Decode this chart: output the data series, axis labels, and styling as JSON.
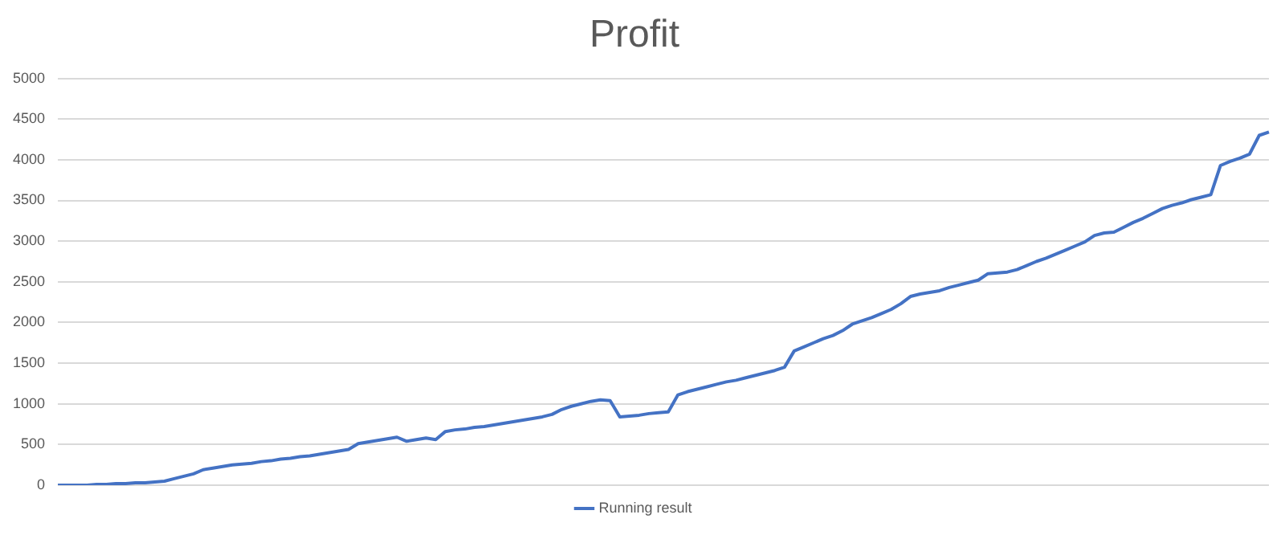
{
  "chart_data": {
    "type": "line",
    "title": "Profit",
    "categories": [
      null,
      null,
      null,
      null,
      null,
      null,
      null,
      null,
      null,
      null,
      null,
      null,
      null,
      null,
      null,
      null,
      null,
      null,
      null,
      null,
      null,
      null,
      null,
      null,
      null,
      null,
      null,
      null,
      null,
      null,
      null,
      null,
      null,
      null,
      null,
      null,
      null,
      null,
      null,
      null,
      null,
      null,
      null,
      null,
      null,
      null,
      null,
      null,
      null,
      null,
      null,
      null,
      null,
      null,
      null,
      null,
      null,
      null,
      null,
      null,
      null,
      null,
      null,
      null,
      null,
      null,
      null,
      null,
      null,
      null,
      null,
      null,
      null,
      null,
      null,
      null,
      null,
      null,
      null,
      null,
      null,
      null,
      null,
      null,
      null,
      null,
      null,
      null,
      null,
      null,
      null,
      null,
      null,
      null,
      null,
      null,
      null,
      null,
      null,
      null,
      null,
      null,
      null,
      null,
      null,
      null,
      null,
      null,
      null,
      null,
      null,
      null,
      null,
      null,
      null,
      null,
      null,
      null,
      null,
      null,
      null,
      null,
      null,
      null,
      null,
      null
    ],
    "series": [
      {
        "name": "Running result",
        "color": "#4472c4",
        "values": [
          0,
          0,
          0,
          0,
          10,
          10,
          20,
          20,
          30,
          30,
          40,
          50,
          80,
          110,
          140,
          190,
          210,
          230,
          250,
          260,
          270,
          290,
          300,
          320,
          330,
          350,
          360,
          380,
          400,
          420,
          440,
          510,
          530,
          550,
          570,
          590,
          540,
          560,
          580,
          560,
          660,
          680,
          690,
          710,
          720,
          740,
          760,
          780,
          800,
          820,
          840,
          870,
          930,
          970,
          1000,
          1030,
          1050,
          1040,
          840,
          850,
          860,
          880,
          890,
          900,
          1110,
          1150,
          1180,
          1210,
          1240,
          1270,
          1290,
          1320,
          1350,
          1380,
          1410,
          1450,
          1650,
          1700,
          1750,
          1800,
          1840,
          1900,
          1980,
          2020,
          2060,
          2110,
          2160,
          2230,
          2320,
          2350,
          2370,
          2390,
          2430,
          2460,
          2490,
          2520,
          2600,
          2610,
          2620,
          2650,
          2700,
          2750,
          2790,
          2840,
          2890,
          2940,
          2990,
          3070,
          3100,
          3110,
          3170,
          3230,
          3280,
          3340,
          3400,
          3440,
          3470,
          3510,
          3540,
          3570,
          3930,
          3980,
          4020,
          4070,
          4300,
          4340
        ]
      }
    ],
    "ylim": [
      0,
      5000
    ],
    "yticks": [
      0,
      500,
      1000,
      1500,
      2000,
      2500,
      3000,
      3500,
      4000,
      4500,
      5000
    ],
    "grid": "y",
    "legend": "bottom",
    "tick_labels": "y",
    "marker": "none",
    "line_style": "solid"
  }
}
